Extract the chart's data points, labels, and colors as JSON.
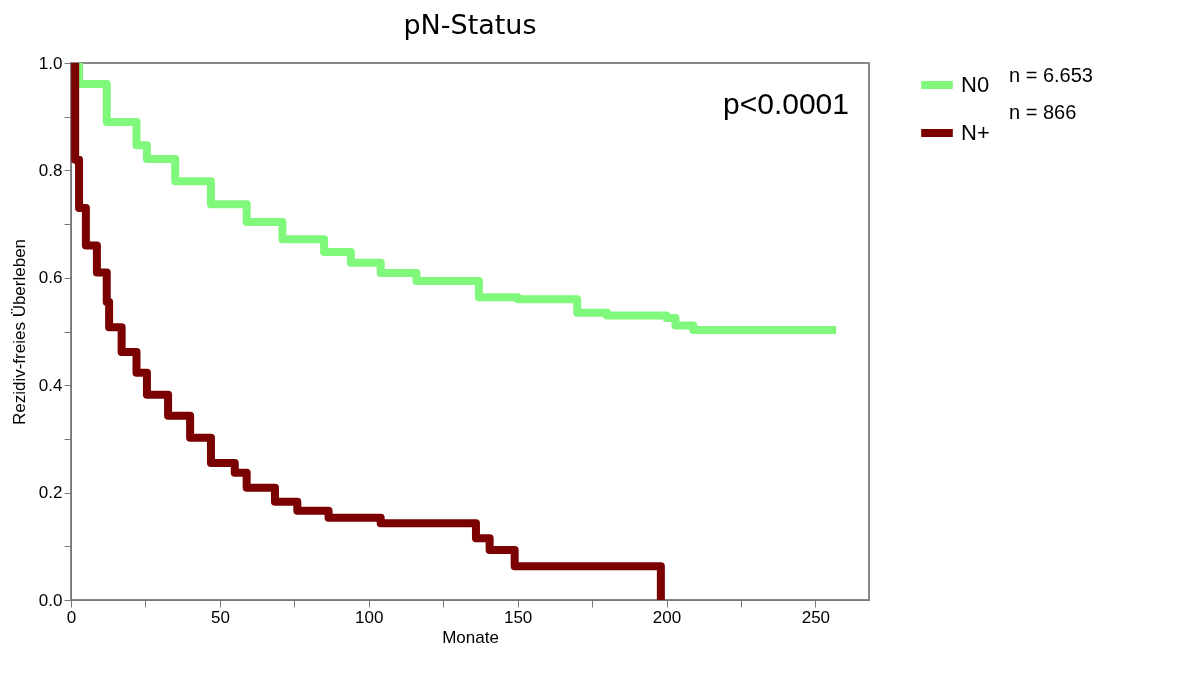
{
  "chart_data": {
    "type": "step",
    "title": "pN-Status",
    "xlabel": "Monate",
    "ylabel": "Rezidiv-freies Überleben",
    "xlim": [
      0,
      268
    ],
    "ylim": [
      0,
      1
    ],
    "xticks": [
      0,
      {
        "value": 25,
        "label": null
      },
      50,
      {
        "value": 75,
        "label": null
      },
      100,
      {
        "value": 125,
        "label": null
      },
      150,
      {
        "value": 175,
        "label": null
      },
      200,
      {
        "value": 225,
        "label": null
      },
      250
    ],
    "yticks": [
      {
        "value": 0,
        "label": "0.0"
      },
      {
        "value": 0.1,
        "label": null
      },
      0.2,
      {
        "value": 0.3,
        "label": null
      },
      0.4,
      {
        "value": 0.5,
        "label": null
      },
      0.6,
      {
        "value": 0.7,
        "label": null
      },
      0.8,
      {
        "value": 0.9,
        "label": null
      },
      {
        "value": 1,
        "label": "1.0"
      }
    ],
    "legend": "top right",
    "line_style": "solid",
    "marker": "none",
    "annotations": [
      "p<0.0001",
      "n = 6.653",
      "n = 866"
    ],
    "series": [
      {
        "name": "N0",
        "color": "#80f87c",
        "x": [
          0,
          2.7,
          12,
          22,
          25.5,
          35,
          47,
          59,
          71,
          85,
          94,
          104,
          116,
          137,
          150,
          170,
          180,
          200,
          203,
          209,
          257
        ],
        "values": [
          1,
          0.961,
          0.89,
          0.847,
          0.821,
          0.78,
          0.737,
          0.704,
          0.672,
          0.648,
          0.628,
          0.609,
          0.594,
          0.564,
          0.56,
          0.535,
          0.53,
          0.525,
          0.511,
          0.503,
          0.503
        ]
      },
      {
        "name": "N+",
        "color": "#7b0000",
        "x": [
          0,
          1.4,
          2.7,
          5,
          8.7,
          12,
          12.8,
          17,
          22,
          25.5,
          32.6,
          40,
          47,
          55,
          59,
          68.5,
          76,
          86.5,
          104,
          136,
          140.6,
          149,
          198,
          198.1
        ],
        "values": [
          1,
          0.82,
          0.73,
          0.66,
          0.61,
          0.555,
          0.508,
          0.462,
          0.423,
          0.382,
          0.343,
          0.302,
          0.255,
          0.237,
          0.209,
          0.183,
          0.166,
          0.153,
          0.143,
          0.115,
          0.093,
          0.063,
          0.063,
          0
        ]
      }
    ]
  }
}
